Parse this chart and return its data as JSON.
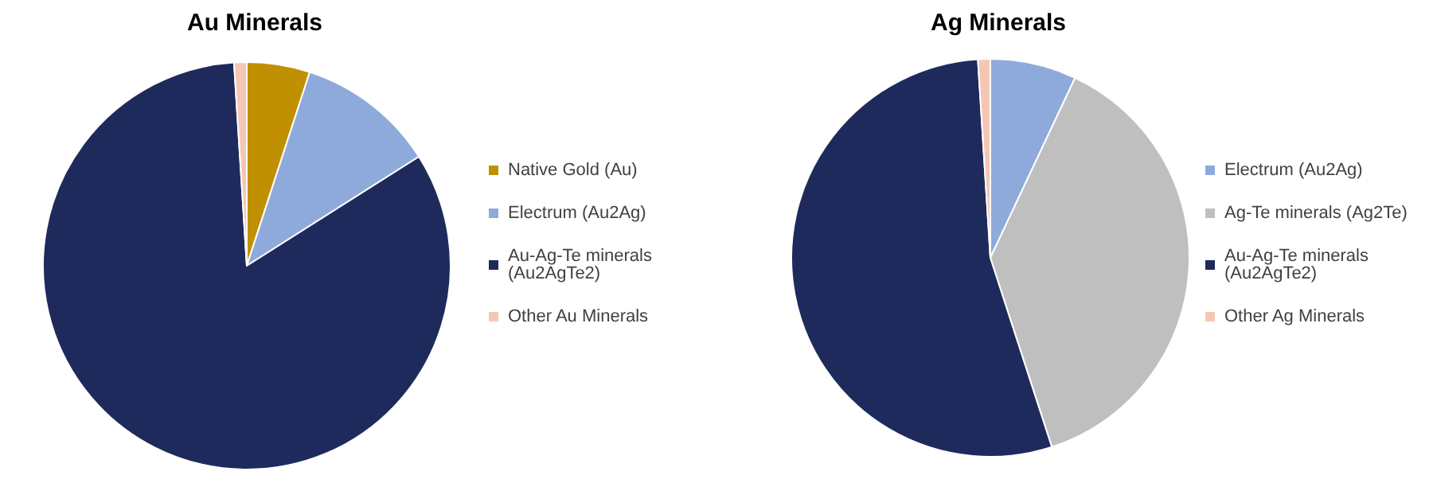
{
  "chart_data": [
    {
      "type": "pie",
      "title": "Au Minerals",
      "categories": [
        "Native Gold (Au)",
        "Electrum (Au2Ag)",
        "Au-Ag-Te minerals (Au2AgTe2)",
        "Other Au Minerals"
      ],
      "values": [
        5,
        11,
        83,
        1
      ],
      "colors": [
        "#c09000",
        "#8eaadb",
        "#1f2a5c",
        "#f4c7b4"
      ],
      "legend": "right"
    },
    {
      "type": "pie",
      "title": "Ag Minerals",
      "categories": [
        "Electrum (Au2Ag)",
        "Ag-Te minerals (Ag2Te)",
        "Au-Ag-Te minerals (Au2AgTe2)",
        "Other Ag Minerals"
      ],
      "values": [
        7,
        38,
        54,
        1
      ],
      "colors": [
        "#8eaadb",
        "#bfbfbf",
        "#1f2a5c",
        "#f4c7b4"
      ],
      "legend": "right"
    }
  ]
}
